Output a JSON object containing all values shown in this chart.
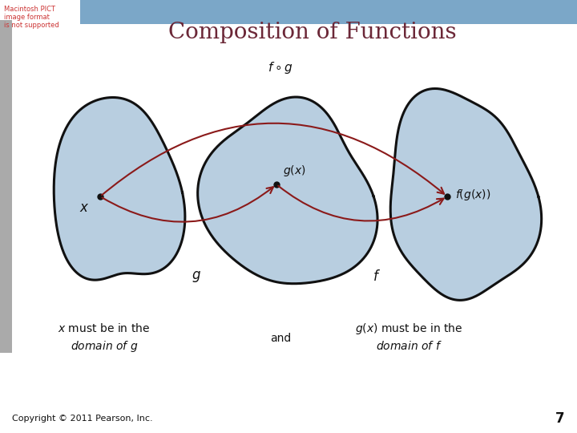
{
  "title": "Composition of Functions",
  "title_color": "#6B2737",
  "title_fontsize": 20,
  "bg_color": "#FFFFFF",
  "blob_fill": "#B8CEE0",
  "blob_edge": "#111111",
  "arrow_color": "#8B1A1A",
  "dot_color": "#111111",
  "text_color": "#111111",
  "copyright_text": "Copyright © 2011 Pearson, Inc.",
  "page_number": "7",
  "header_bg": "#5B8DB8",
  "header_text_color": "#CC3333",
  "header_text": [
    "Macintosh PICT",
    "image format",
    "is not supported"
  ]
}
